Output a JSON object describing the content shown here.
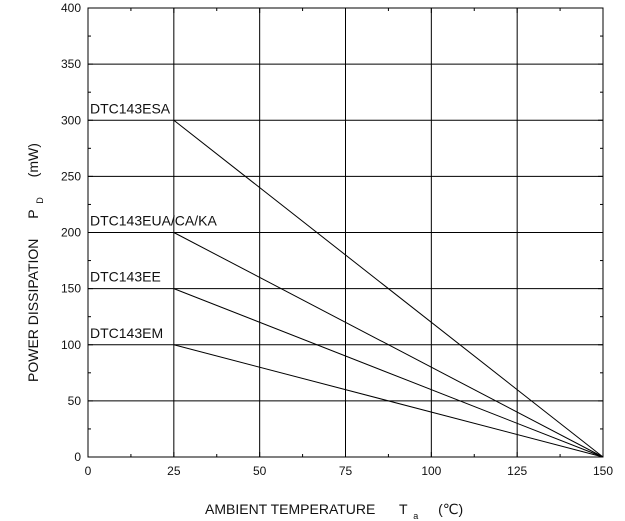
{
  "chart_data": {
    "type": "line",
    "title": "",
    "xlabel": {
      "main": "AMBIENT TEMPERATURE",
      "symbol": "T",
      "subscript": "a",
      "unit": "(℃)"
    },
    "ylabel": {
      "main": "POWER DISSIPATION",
      "symbol": "P",
      "subscript": "D",
      "unit": "(mW)"
    },
    "xlim": [
      0,
      150
    ],
    "ylim": [
      0,
      400
    ],
    "x_ticks": [
      0,
      25,
      50,
      75,
      100,
      125,
      150
    ],
    "y_ticks": [
      0,
      50,
      100,
      150,
      200,
      250,
      300,
      350,
      400
    ],
    "x_tick_labels": [
      "0",
      "25",
      "50",
      "75",
      "100",
      "125",
      "150"
    ],
    "y_tick_labels": [
      "0",
      "50",
      "100",
      "150",
      "200",
      "250",
      "300",
      "350",
      "400"
    ],
    "grid": true,
    "series": [
      {
        "name": "DTC143ESA",
        "points": [
          [
            25,
            300
          ],
          [
            150,
            0
          ]
        ]
      },
      {
        "name": "DTC143EUA/CA/KA",
        "points": [
          [
            25,
            200
          ],
          [
            150,
            0
          ]
        ]
      },
      {
        "name": "DTC143EE",
        "points": [
          [
            25,
            150
          ],
          [
            150,
            0
          ]
        ]
      },
      {
        "name": "DTC143EM",
        "points": [
          [
            25,
            100
          ],
          [
            150,
            0
          ]
        ]
      }
    ]
  },
  "colors": {
    "line": "#000000",
    "text": "#111111",
    "background": "#ffffff"
  }
}
